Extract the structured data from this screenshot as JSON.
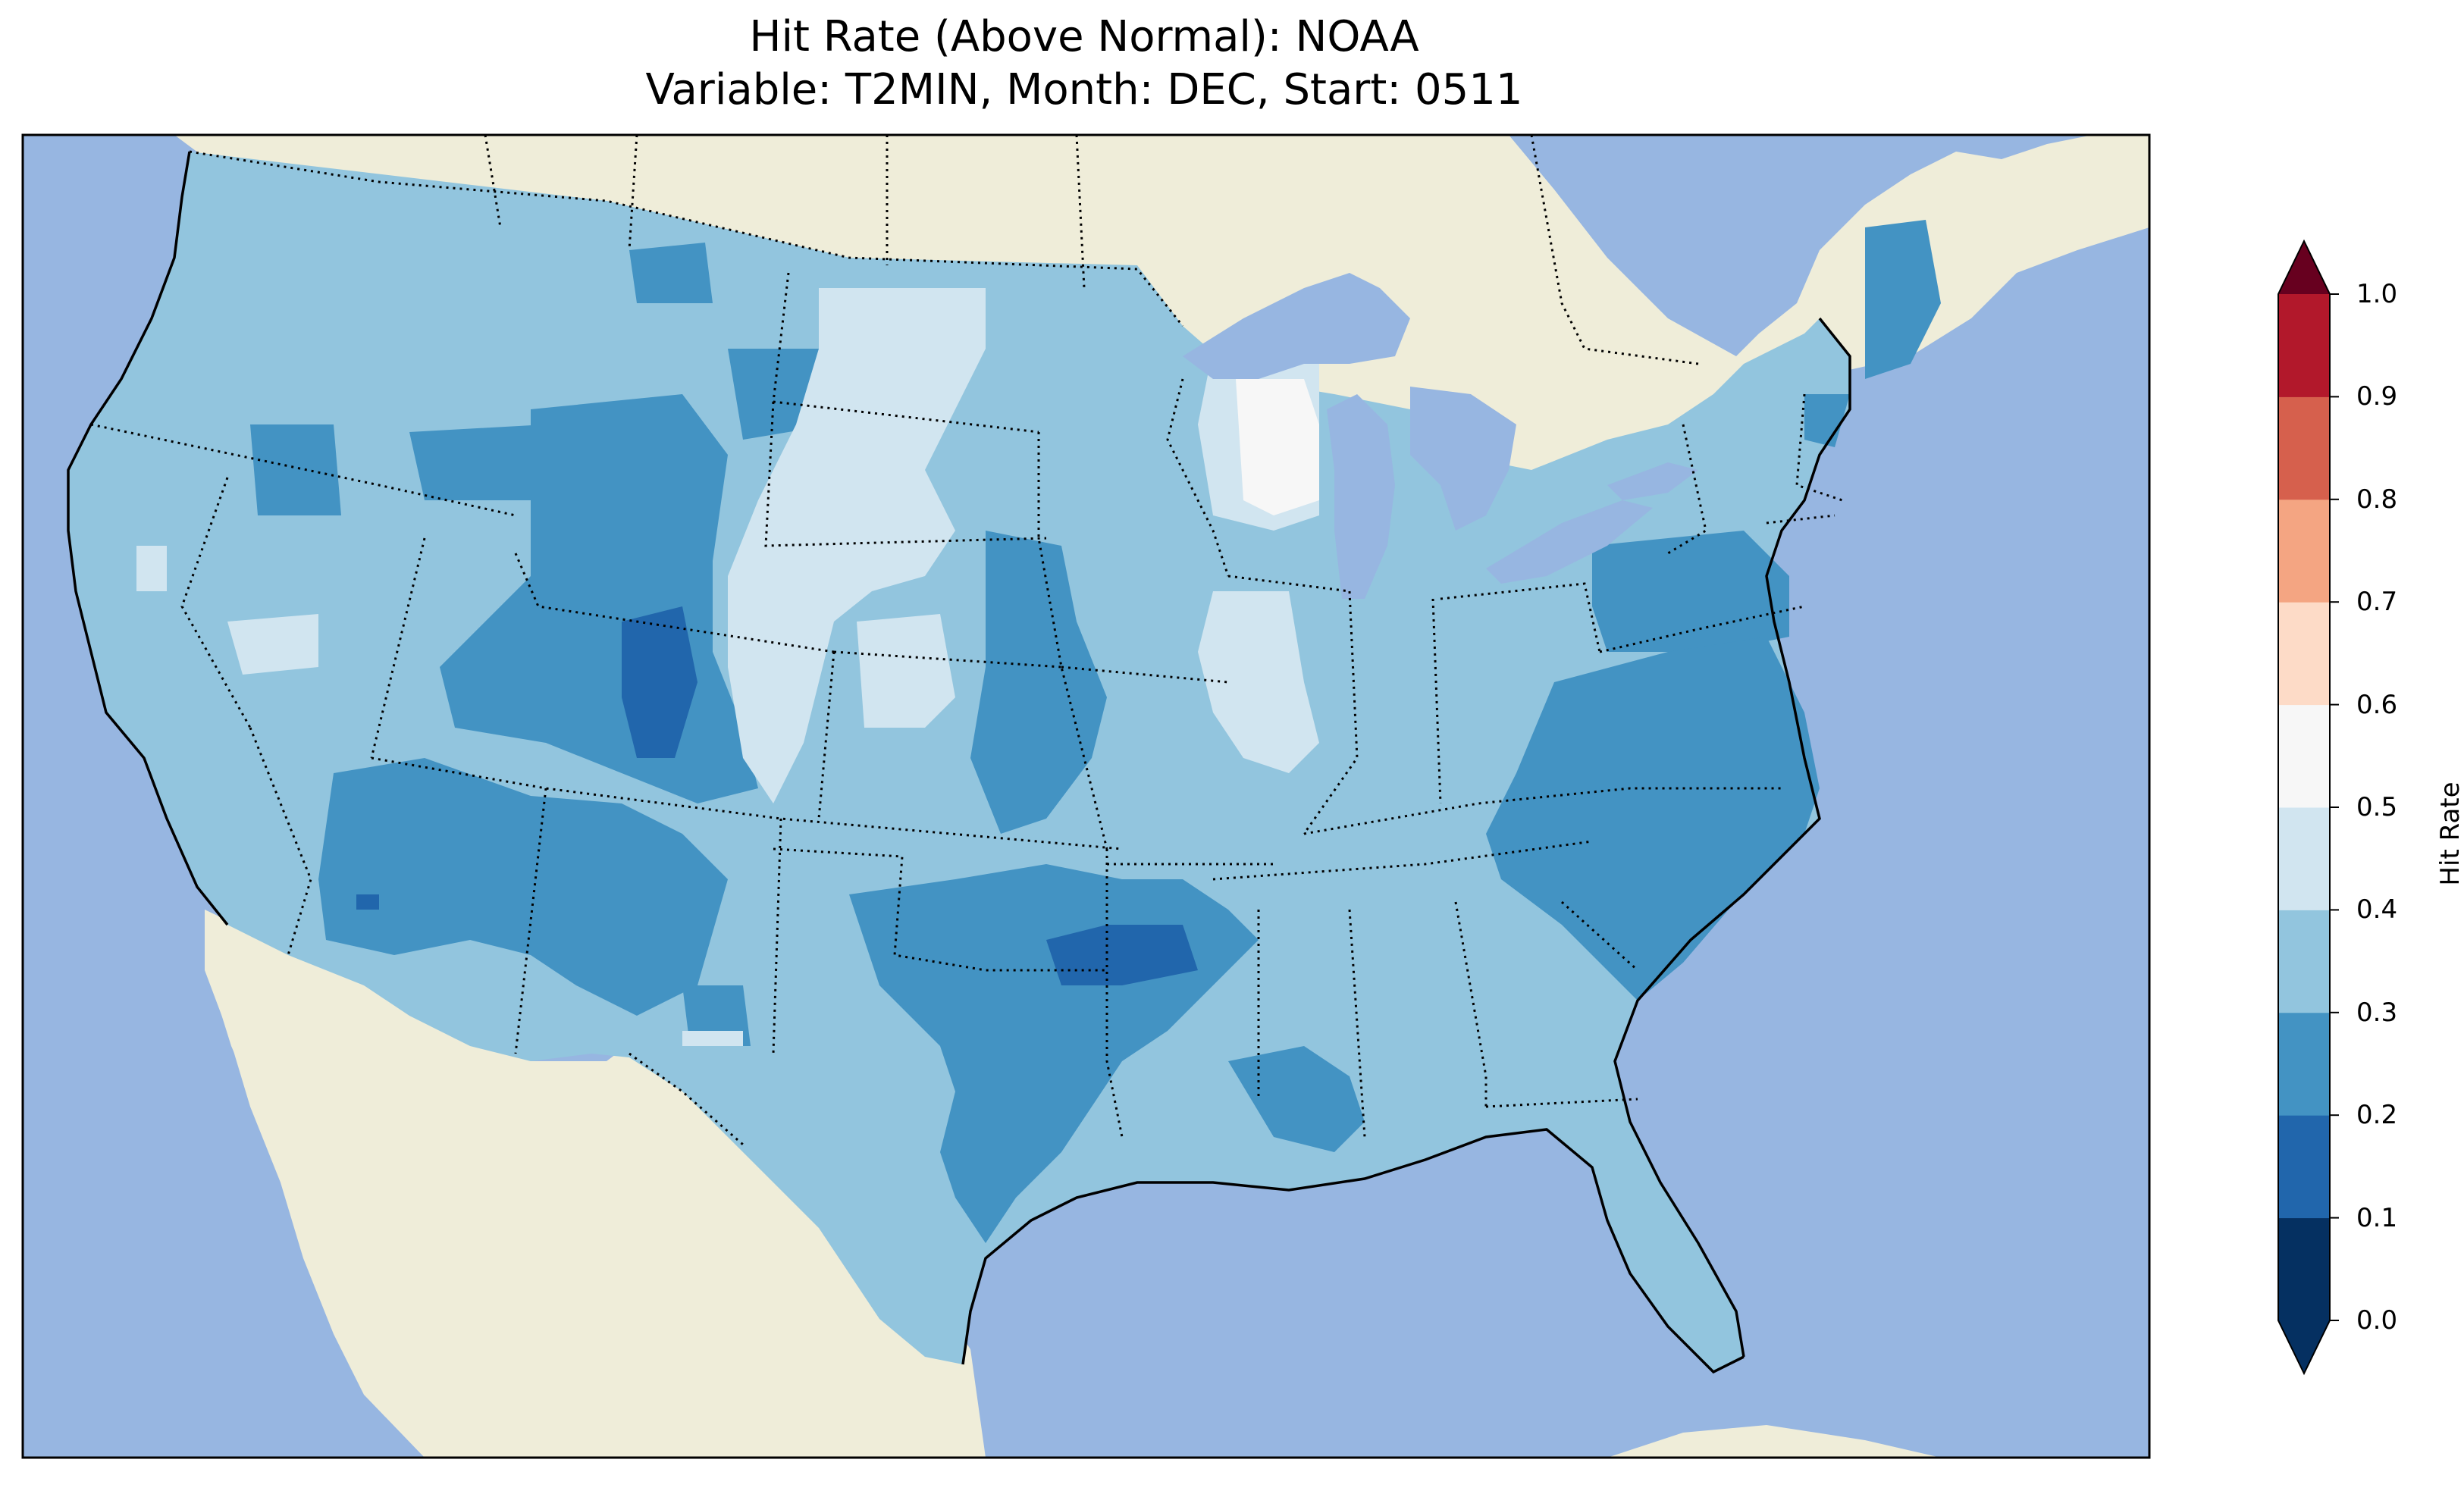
{
  "title": {
    "line1": "Hit Rate (Above Normal): NOAA",
    "line2": "Variable: T2MIN, Month: DEC, Start: 0511"
  },
  "colors": {
    "ocean": "#97b6e1",
    "foreign_land": "#efedd9",
    "lakes": "#97b6e1"
  },
  "colorbar": {
    "label": "Hit Rate",
    "ticks": [
      "0.0",
      "0.1",
      "0.2",
      "0.3",
      "0.4",
      "0.5",
      "0.6",
      "0.7",
      "0.8",
      "0.9",
      "1.0"
    ],
    "bins": [
      {
        "range": [
          0.0,
          0.1
        ],
        "color": "#053061"
      },
      {
        "range": [
          0.1,
          0.2
        ],
        "color": "#2166ac"
      },
      {
        "range": [
          0.2,
          0.3
        ],
        "color": "#4393c3"
      },
      {
        "range": [
          0.3,
          0.4
        ],
        "color": "#92c5de"
      },
      {
        "range": [
          0.4,
          0.5
        ],
        "color": "#d1e5f0"
      },
      {
        "range": [
          0.5,
          0.6
        ],
        "color": "#f7f7f7"
      },
      {
        "range": [
          0.6,
          0.7
        ],
        "color": "#fddbc7"
      },
      {
        "range": [
          0.7,
          0.8
        ],
        "color": "#f4a582"
      },
      {
        "range": [
          0.8,
          0.9
        ],
        "color": "#d6604d"
      },
      {
        "range": [
          0.9,
          1.0
        ],
        "color": "#b2182b"
      }
    ],
    "extend_low_color": "#053061",
    "extend_high_color": "#67001f"
  },
  "map_regions": [
    {
      "name": "CONUS (0.3-0.4)",
      "value": 0.35
    },
    {
      "name": "Northern Rockies (0.2-0.3)",
      "value": 0.25
    },
    {
      "name": "Colorado core (0.1-0.2)",
      "value": 0.15
    },
    {
      "name": "Northern/Central Plains (0.4-0.5)",
      "value": 0.45
    },
    {
      "name": "Wisconsin core (0.5-0.6)",
      "value": 0.55
    },
    {
      "name": "Southwest (0.2-0.3)",
      "value": 0.25
    },
    {
      "name": "Southern Plains (0.2-0.3)",
      "value": 0.25
    },
    {
      "name": "Oklahoma-Arkansas core (0.1-0.2)",
      "value": 0.15
    },
    {
      "name": "Mid-Atlantic & Carolinas (0.2-0.3)",
      "value": 0.25
    },
    {
      "name": "Maine (0.2-0.3)",
      "value": 0.25
    },
    {
      "name": "Illinois (0.4-0.5)",
      "value": 0.45
    }
  ]
}
